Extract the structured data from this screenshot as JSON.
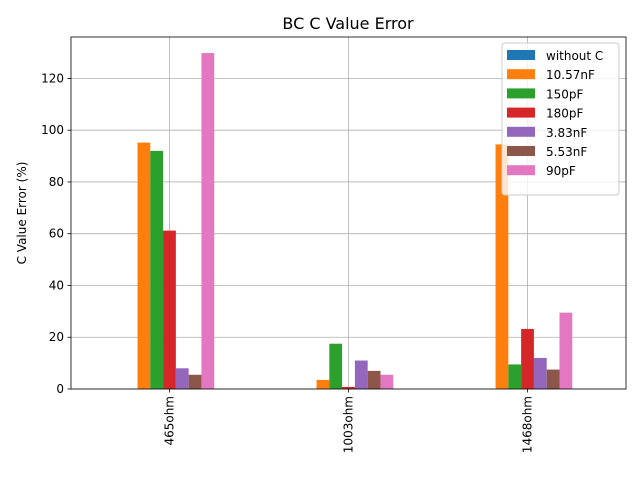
{
  "chart_data": {
    "type": "bar",
    "title": "BC C Value Error",
    "xlabel": "",
    "ylabel": "C Value Error (%)",
    "categories": [
      "465ohm",
      "1003ohm",
      "1468ohm"
    ],
    "ylim": [
      0,
      136
    ],
    "yticks": [
      0,
      20,
      40,
      60,
      80,
      100,
      120
    ],
    "grid": true,
    "legend_position": "top-right",
    "series": [
      {
        "name": "without C",
        "color": "#1f77b4",
        "values": [
          0,
          0,
          0
        ]
      },
      {
        "name": "10.57nF",
        "color": "#ff7f0e",
        "values": [
          95.2,
          3.5,
          94.5
        ]
      },
      {
        "name": "150pF",
        "color": "#2ca02c",
        "values": [
          92.0,
          17.5,
          9.5
        ]
      },
      {
        "name": "180pF",
        "color": "#d62728",
        "values": [
          61.2,
          0.8,
          23.2
        ]
      },
      {
        "name": "3.83nF",
        "color": "#9467bd",
        "values": [
          8.0,
          11.0,
          12.0
        ]
      },
      {
        "name": "5.53nF",
        "color": "#8c564b",
        "values": [
          5.5,
          7.0,
          7.5
        ]
      },
      {
        "name": "90pF",
        "color": "#e377c2",
        "values": [
          129.8,
          5.5,
          29.5
        ]
      }
    ]
  }
}
